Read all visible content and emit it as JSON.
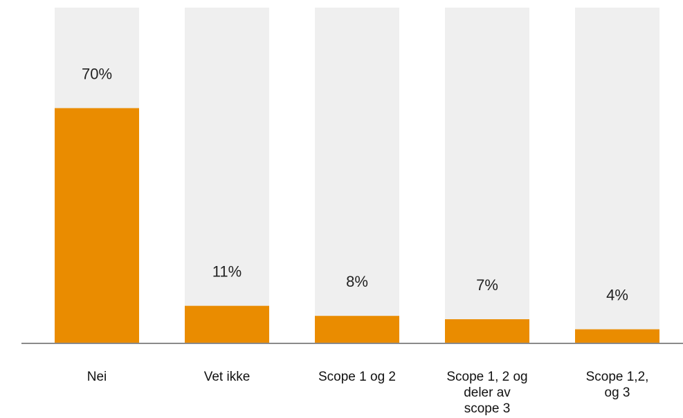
{
  "chart_data": {
    "type": "bar",
    "categories": [
      [
        "Nei"
      ],
      [
        "Vet ikke"
      ],
      [
        "Scope 1 og 2"
      ],
      [
        "Scope 1, 2 og",
        "deler av",
        "scope 3"
      ],
      [
        "Scope 1,2,",
        "og 3"
      ]
    ],
    "values": [
      70,
      11,
      8,
      7,
      4
    ],
    "value_labels": [
      "70%",
      "11%",
      "8%",
      "7%",
      "4%"
    ],
    "ylim": [
      0,
      100
    ],
    "grid": false,
    "legend": "none",
    "colors": {
      "bar": "#EA8C00",
      "track": "#EFEFEF",
      "axis": "#8A8A8A"
    }
  }
}
